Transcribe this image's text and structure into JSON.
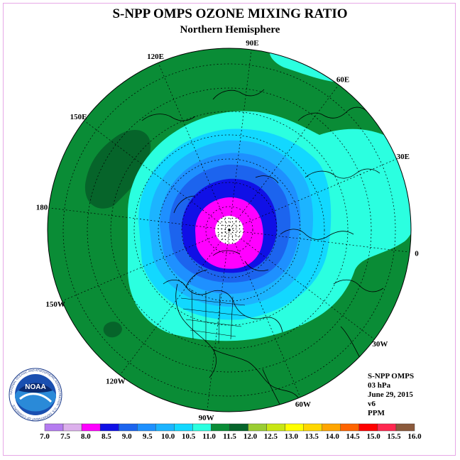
{
  "header": {
    "title": "S-NPP OMPS OZONE MIXING RATIO",
    "subtitle": "Northern Hemisphere"
  },
  "meridians": [
    {
      "label": "90E",
      "lon": 90
    },
    {
      "label": "60E",
      "lon": 60
    },
    {
      "label": "30E",
      "lon": 30
    },
    {
      "label": "0",
      "lon": 0
    },
    {
      "label": "30W",
      "lon": -30
    },
    {
      "label": "60W",
      "lon": -60
    },
    {
      "label": "90W",
      "lon": -90
    },
    {
      "label": "120W",
      "lon": -120
    },
    {
      "label": "150W",
      "lon": -150
    },
    {
      "label": "180",
      "lon": 180
    },
    {
      "label": "150E",
      "lon": 150
    },
    {
      "label": "120E",
      "lon": 120
    }
  ],
  "info": {
    "instrument": "S-NPP OMPS",
    "level": "03 hPa",
    "date": "June 29, 2015",
    "version": "v6",
    "units": "PPM"
  },
  "logo": {
    "text": "NOAA",
    "ring_text": "NATIONAL OCEANIC AND ATMOSPHERIC ADMINISTRATION · U.S. DEPARTMENT OF COMMERCE"
  },
  "colorbar": {
    "labels": [
      "7.0",
      "7.5",
      "8.0",
      "8.5",
      "9.0",
      "9.5",
      "10.0",
      "10.5",
      "11.0",
      "11.5",
      "12.0",
      "12.5",
      "13.0",
      "13.5",
      "14.0",
      "14.5",
      "15.0",
      "15.5",
      "16.0"
    ],
    "colors": [
      "#b57cf0",
      "#dcb0ec",
      "#ff00ff",
      "#1010e6",
      "#1c64ee",
      "#1e90ff",
      "#1cb4ff",
      "#12d8ff",
      "#2bffe0",
      "#0a8c36",
      "#06642a",
      "#9acd32",
      "#c8e614",
      "#ffff00",
      "#ffd700",
      "#ffa500",
      "#ff6400",
      "#ff0000",
      "#ff2850",
      "#8b5a3c"
    ]
  },
  "colors": {
    "outer": "#0a8c36",
    "dark_green": "#06642a",
    "cyan": "#2bffe0",
    "sky": "#12d8ff",
    "light_blue": "#1cb4ff",
    "mid_blue": "#1e90ff",
    "blue": "#1c64ee",
    "deep_blue": "#1010e6",
    "magenta": "#ff00ff",
    "pole": "#ffffff"
  }
}
